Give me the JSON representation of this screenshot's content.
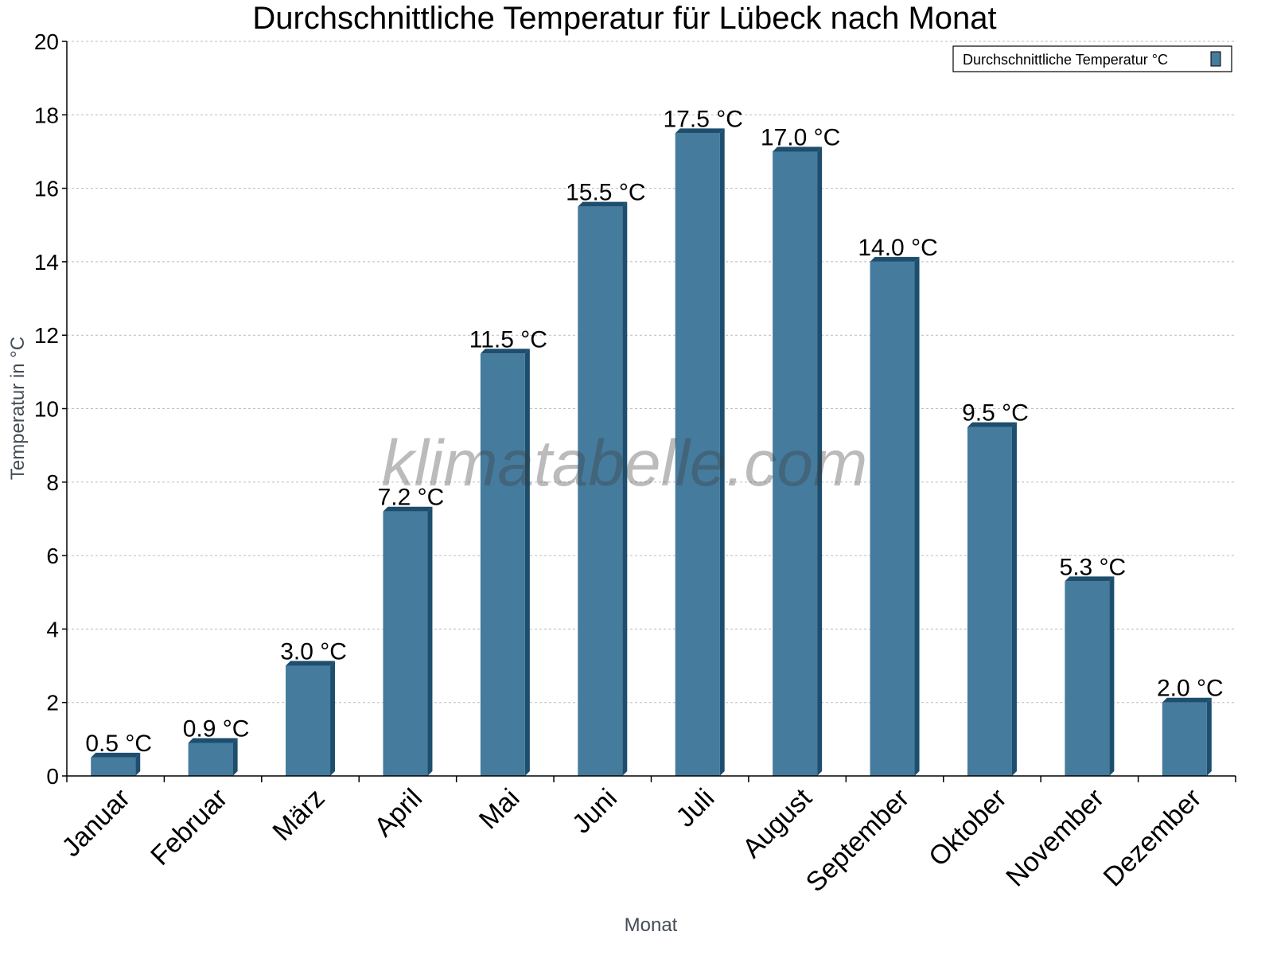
{
  "chart_data": {
    "type": "bar",
    "title": "Durchschnittliche Temperatur für Lübeck nach Monat",
    "xlabel": "Monat",
    "ylabel": "Temperatur in °C",
    "ylim": [
      0,
      20
    ],
    "yticks": [
      0,
      2,
      4,
      6,
      8,
      10,
      12,
      14,
      16,
      18,
      20
    ],
    "grid": true,
    "legend_position": "top-right",
    "categories": [
      "Januar",
      "Februar",
      "März",
      "April",
      "Mai",
      "Juni",
      "Juli",
      "August",
      "September",
      "Oktober",
      "November",
      "Dezember"
    ],
    "series": [
      {
        "name": "Durchschnittliche Temperatur °C",
        "values": [
          0.5,
          0.9,
          3.0,
          7.2,
          11.5,
          15.5,
          17.5,
          17.0,
          14.0,
          9.5,
          5.3,
          2.0
        ]
      }
    ],
    "data_labels": [
      "0.5 °C",
      "0.9 °C",
      "3.0 °C",
      "7.2 °C",
      "11.5 °C",
      "15.5 °C",
      "17.5 °C",
      "17.0 °C",
      "14.0 °C",
      "9.5 °C",
      "5.3 °C",
      "2.0 °C"
    ],
    "colors": {
      "bar": "#457b9d",
      "bar_side": "#1d4e6e"
    },
    "watermark": "klimatabelle.com"
  }
}
